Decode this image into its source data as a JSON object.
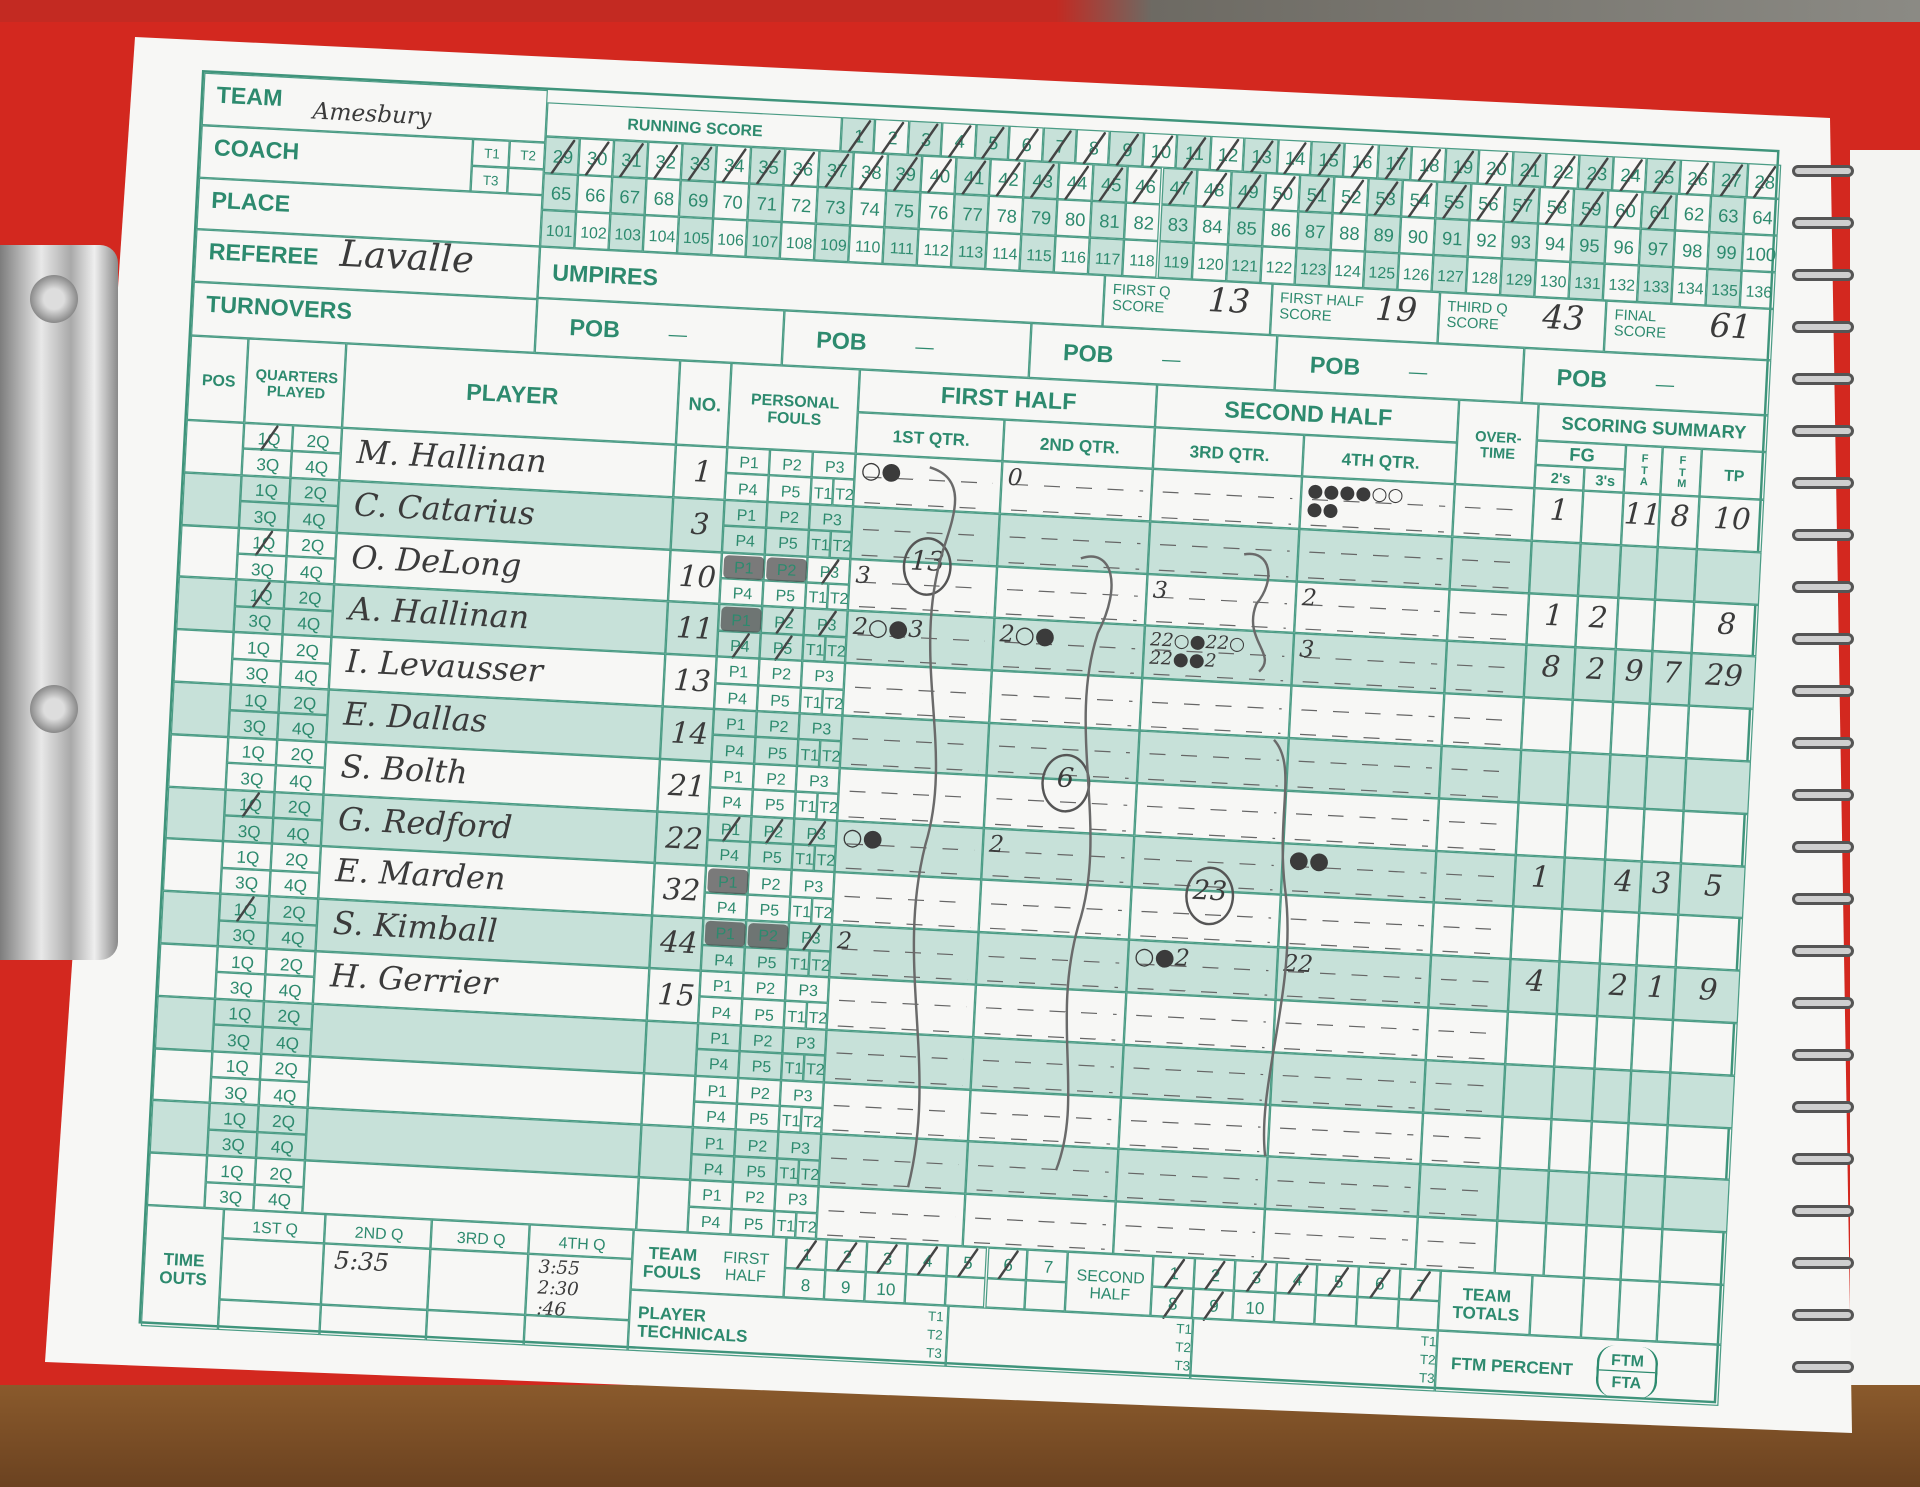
{
  "header": {
    "team_label": "TEAM",
    "team": "Amesbury",
    "coach_label": "COACH",
    "place_label": "PLACE",
    "referee_label": "REFEREE",
    "referee": "Lavalle",
    "turnovers_label": "TURNOVERS",
    "umpires_label": "UMPIRES",
    "timeout_boxes": [
      "T1",
      "T2",
      "T3"
    ]
  },
  "running_score": {
    "label": "RUNNING SCORE",
    "marked_through": 61,
    "rows": [
      [
        1,
        2,
        3,
        4,
        5,
        6,
        7,
        8,
        9,
        10,
        11,
        12,
        13,
        14,
        15,
        16,
        17,
        18,
        19,
        20,
        21,
        22,
        23,
        24,
        25,
        26,
        27,
        28
      ],
      [
        29,
        30,
        31,
        32,
        33,
        34,
        35,
        36,
        37,
        38,
        39,
        40,
        41,
        42,
        43,
        44,
        45,
        46,
        47,
        48,
        49,
        50,
        51,
        52,
        53,
        54,
        55,
        56,
        57,
        58,
        59,
        60,
        61,
        62,
        63,
        64
      ],
      [
        65,
        66,
        67,
        68,
        69,
        70,
        71,
        72,
        73,
        74,
        75,
        76,
        77,
        78,
        79,
        80,
        81,
        82,
        83,
        84,
        85,
        86,
        87,
        88,
        89,
        90,
        91,
        92,
        93,
        94,
        95,
        96,
        97,
        98,
        99,
        100
      ],
      [
        101,
        102,
        103,
        104,
        105,
        106,
        107,
        108,
        109,
        110,
        111,
        112,
        113,
        114,
        115,
        116,
        117,
        118,
        119,
        120,
        121,
        122,
        123,
        124,
        125,
        126,
        127,
        128,
        129,
        130,
        131,
        132,
        133,
        134,
        135,
        136
      ]
    ]
  },
  "period_scores": [
    {
      "label": "FIRST Q",
      "sub": "SCORE",
      "value": "13"
    },
    {
      "label": "FIRST HALF",
      "sub": "SCORE",
      "value": "19"
    },
    {
      "label": "THIRD Q",
      "sub": "SCORE",
      "value": "43"
    },
    {
      "label": "FINAL",
      "sub": "SCORE",
      "value": "61"
    }
  ],
  "pob_labels": [
    "POB",
    "POB",
    "POB",
    "POB",
    "POB"
  ],
  "pob_blank": "—",
  "table": {
    "pos": "POS",
    "quarters_played": "QUARTERS\nPLAYED",
    "player": "PLAYER",
    "no": "NO.",
    "personal_fouls": "PERSONAL\nFOULS",
    "first_half": "FIRST HALF",
    "second_half": "SECOND HALF",
    "q1": "1ST QTR.",
    "q2": "2ND QTR.",
    "q3": "3RD QTR.",
    "q4": "4TH QTR.",
    "overtime": "OVER-\nTIME",
    "scoring_summary": "SCORING SUMMARY",
    "fg": "FG",
    "twos": "2's",
    "threes": "3's",
    "fta": "F\nT\nA",
    "ftm": "F\nT\nM",
    "tp": "TP",
    "quarter_labels": [
      "1Q",
      "2Q",
      "3Q",
      "4Q"
    ],
    "foul_labels": [
      "P1",
      "P2",
      "P3",
      "P4",
      "P5",
      "T1",
      "T2"
    ]
  },
  "players": [
    {
      "name": "M. Hallinan",
      "number": "1",
      "quarters_crossed": [
        "1Q"
      ],
      "fouls_shaded": [],
      "fouls_crossed": [],
      "q1": "○●",
      "q2": "0",
      "q3": "",
      "q4": "●●●●○○\n●●",
      "fg2": "1",
      "fg3": "",
      "fta": "11",
      "ftm": "8",
      "tp": "10"
    },
    {
      "name": "C. Catarius",
      "number": "3",
      "quarters_crossed": [],
      "fouls_shaded": [],
      "fouls_crossed": [],
      "q1": "",
      "q2": "",
      "q3": "",
      "q4": "",
      "q1_circled": "13",
      "fg2": "",
      "fg3": "",
      "fta": "",
      "ftm": "",
      "tp": ""
    },
    {
      "name": "O. DeLong",
      "number": "10",
      "quarters_crossed": [
        "1Q"
      ],
      "fouls_shaded": [
        "P1",
        "P2"
      ],
      "fouls_crossed": [
        "P3"
      ],
      "q1": "3",
      "q2": "",
      "q3": "3",
      "q4": "2",
      "fg2": "1",
      "fg3": "2",
      "fta": "",
      "ftm": "",
      "tp": "8"
    },
    {
      "name": "A. Hallinan",
      "number": "11",
      "quarters_crossed": [
        "1Q"
      ],
      "fouls_shaded": [
        "P1"
      ],
      "fouls_crossed": [
        "P2",
        "P3",
        "P4",
        "P5"
      ],
      "q1": "2○●3",
      "q2": "2○●",
      "q3": "22○●22○\n22●●2",
      "q4": "3",
      "fg2": "8",
      "fg3": "2",
      "fta": "9",
      "ftm": "7",
      "tp": "29"
    },
    {
      "name": "I. Levausser",
      "number": "13",
      "quarters_crossed": [],
      "fouls_shaded": [],
      "fouls_crossed": [],
      "q1": "",
      "q2": "",
      "q3": "",
      "q4": "",
      "fg2": "",
      "fg3": "",
      "fta": "",
      "ftm": "",
      "tp": ""
    },
    {
      "name": "E. Dallas",
      "number": "14",
      "quarters_crossed": [],
      "fouls_shaded": [],
      "fouls_crossed": [],
      "q1": "",
      "q2": "",
      "q3": "",
      "q4": "",
      "q2_circled": "6",
      "fg2": "",
      "fg3": "",
      "fta": "",
      "ftm": "",
      "tp": ""
    },
    {
      "name": "S. Bolth",
      "number": "21",
      "quarters_crossed": [],
      "fouls_shaded": [],
      "fouls_crossed": [],
      "q1": "",
      "q2": "",
      "q3": "",
      "q4": "",
      "fg2": "",
      "fg3": "",
      "fta": "",
      "ftm": "",
      "tp": ""
    },
    {
      "name": "G. Redford",
      "number": "22",
      "quarters_crossed": [
        "1Q"
      ],
      "fouls_shaded": [],
      "fouls_crossed": [
        "P1",
        "P2",
        "P3"
      ],
      "q1": "○●",
      "q2": "2",
      "q3": "",
      "q4": "●●",
      "q3_circled": "23",
      "fg2": "1",
      "fg3": "",
      "fta": "4",
      "ftm": "3",
      "tp": "5"
    },
    {
      "name": "E. Marden",
      "number": "32",
      "quarters_crossed": [],
      "fouls_shaded": [
        "P1"
      ],
      "fouls_crossed": [],
      "q1": "",
      "q2": "",
      "q3": "",
      "q4": "",
      "fg2": "",
      "fg3": "",
      "fta": "",
      "ftm": "",
      "tp": ""
    },
    {
      "name": "S. Kimball",
      "number": "44",
      "quarters_crossed": [
        "1Q"
      ],
      "fouls_shaded": [
        "P1",
        "P2"
      ],
      "fouls_crossed": [
        "P3"
      ],
      "q1": "2",
      "q2": "",
      "q3": "○●2",
      "q4": "22",
      "fg2": "4",
      "fg3": "",
      "fta": "2",
      "ftm": "1",
      "tp": "9"
    },
    {
      "name": "H. Gerrier",
      "number": "15",
      "quarters_crossed": [],
      "fouls_shaded": [],
      "fouls_crossed": [],
      "q1": "",
      "q2": "",
      "q3": "",
      "q4": "",
      "fg2": "",
      "fg3": "",
      "fta": "",
      "ftm": "",
      "tp": ""
    }
  ],
  "footer": {
    "timeouts_label": "TIME\nOUTS",
    "timeout_quarters": [
      "1ST Q",
      "2ND Q",
      "3RD Q",
      "4TH Q"
    ],
    "timeouts": [
      [],
      [
        "5:35"
      ],
      [],
      [
        "3:55",
        "2:30",
        ":46"
      ]
    ],
    "team_fouls_label": "TEAM\nFOULS",
    "first_half_label": "FIRST\nHALF",
    "second_half_label": "SECOND\nHALF",
    "foul_numbers": [
      "1",
      "2",
      "3",
      "4",
      "5",
      "6",
      "7",
      "8",
      "9",
      "10"
    ],
    "first_half_marked": 6,
    "second_half_marked": 9,
    "team_totals_label": "TEAM\nTOTALS",
    "player_technicals_label": "PLAYER\nTECHNICALS",
    "tech_labels": [
      "T1",
      "T2",
      "T3"
    ],
    "ftm_percent_label": "FTM PERCENT",
    "ftm": "FTM",
    "fta": "FTA"
  },
  "colors": {
    "print": "#2d8a6e",
    "shade": "#c7e1d9",
    "clipboard": "#d3281f"
  }
}
